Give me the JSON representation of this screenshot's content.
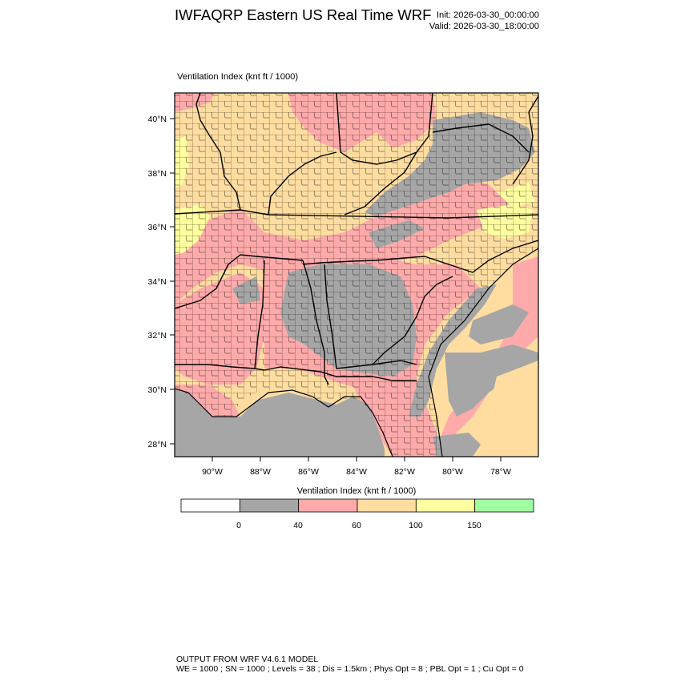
{
  "header": {
    "title": "IWFAQRP Eastern US Real Time WRF",
    "init": "Init: 2026-03-30_00:00:00",
    "valid": "Valid: 2026-03-30_18:00:00"
  },
  "field": {
    "label": "Ventilation Index   (knt ft / 1000)"
  },
  "map": {
    "lat_labels": [
      "40°N",
      "38°N",
      "36°N",
      "34°N",
      "32°N",
      "30°N",
      "28°N"
    ],
    "lon_labels": [
      "90°W",
      "88°W",
      "86°W",
      "84°W",
      "82°W",
      "80°W",
      "78°W"
    ],
    "colors": {
      "below_0": "#ffffff",
      "0_40": "#a6a6a6",
      "40_60": "#ffaaaa",
      "60_100": "#ffdda0",
      "100_150": "#ffffa0",
      "above_150": "#a0ffa0"
    }
  },
  "colorbar": {
    "title": "Ventilation Index  (knt ft / 1000)",
    "colors": [
      "#ffffff",
      "#a6a6a6",
      "#ffaaaa",
      "#ffdda0",
      "#ffffa0",
      "#a0ffa0"
    ],
    "ticks": [
      "0",
      "40",
      "60",
      "100",
      "150"
    ]
  },
  "footer": {
    "line1": "OUTPUT FROM WRF V4.6.1 MODEL",
    "line2": "WE = 1000 ; SN = 1000 ; Levels = 38 ; Dis = 1.5km ; Phys Opt = 8 ; PBL Opt = 1 ; Cu Opt = 0"
  }
}
